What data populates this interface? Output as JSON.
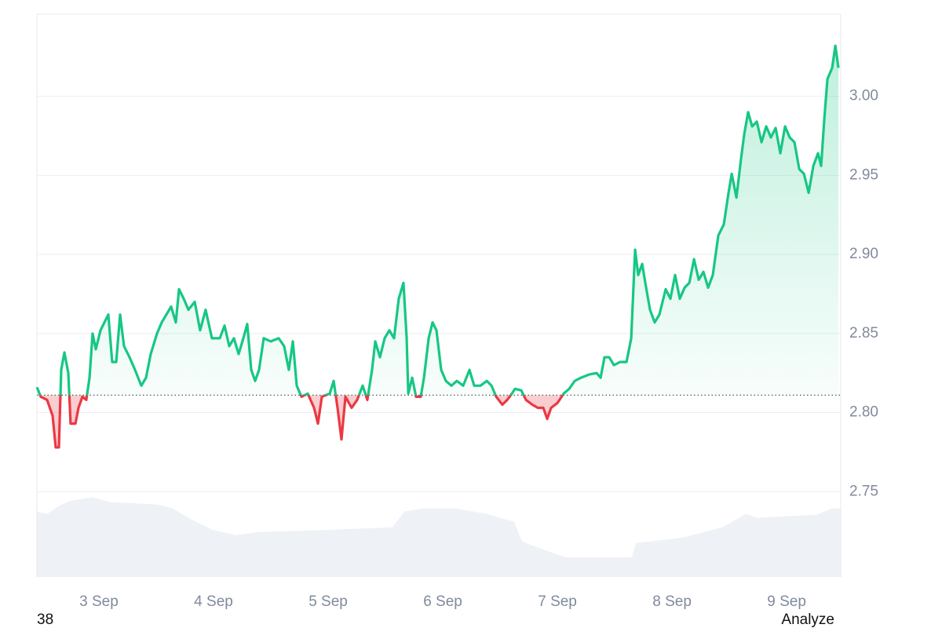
{
  "chart_data": {
    "type": "line",
    "x": [
      2.459,
      2.493,
      2.548,
      2.596,
      2.623,
      2.651,
      2.671,
      2.699,
      2.733,
      2.753,
      2.795,
      2.822,
      2.856,
      2.89,
      2.918,
      2.945,
      2.973,
      3.014,
      3.048,
      3.082,
      3.116,
      3.151,
      3.185,
      3.219,
      3.267,
      3.315,
      3.37,
      3.411,
      3.452,
      3.507,
      3.548,
      3.589,
      3.63,
      3.671,
      3.699,
      3.74,
      3.781,
      3.836,
      3.883,
      3.931,
      3.986,
      4.055,
      4.096,
      4.137,
      4.178,
      4.219,
      4.26,
      4.294,
      4.329,
      4.363,
      4.397,
      4.438,
      4.5,
      4.568,
      4.616,
      4.657,
      4.692,
      4.726,
      4.767,
      4.822,
      4.877,
      4.911,
      4.945,
      5.014,
      5.048,
      5.082,
      5.116,
      5.151,
      5.205,
      5.253,
      5.301,
      5.342,
      5.383,
      5.411,
      5.452,
      5.493,
      5.534,
      5.575,
      5.616,
      5.657,
      5.685,
      5.699,
      5.733,
      5.767,
      5.808,
      5.836,
      5.877,
      5.911,
      5.945,
      5.986,
      6.027,
      6.075,
      6.123,
      6.178,
      6.233,
      6.274,
      6.329,
      6.384,
      6.425,
      6.466,
      6.52,
      6.562,
      6.603,
      6.63,
      6.685,
      6.726,
      6.781,
      6.829,
      6.877,
      6.911,
      6.945,
      7.0,
      7.055,
      7.103,
      7.151,
      7.205,
      7.274,
      7.342,
      7.377,
      7.411,
      7.452,
      7.493,
      7.548,
      7.603,
      7.644,
      7.678,
      7.705,
      7.74,
      7.767,
      7.808,
      7.849,
      7.89,
      7.945,
      7.986,
      8.027,
      8.068,
      8.11,
      8.151,
      8.192,
      8.233,
      8.274,
      8.315,
      8.356,
      8.404,
      8.452,
      8.493,
      8.521,
      8.562,
      8.603,
      8.63,
      8.664,
      8.699,
      8.74,
      8.781,
      8.822,
      8.863,
      8.904,
      8.945,
      8.986,
      9.027,
      9.068,
      9.11,
      9.151,
      9.192,
      9.233,
      9.274,
      9.301,
      9.329,
      9.356,
      9.397,
      9.425,
      9.452
    ],
    "series": [
      {
        "color": "#16c784",
        "values": [
          2.816,
          2.81,
          2.808,
          2.798,
          2.778,
          2.778,
          2.827,
          2.838,
          2.825,
          2.793,
          2.793,
          2.803,
          2.81,
          2.808,
          2.822,
          2.85,
          2.84,
          2.852,
          2.857,
          2.862,
          2.832,
          2.832,
          2.862,
          2.842,
          2.835,
          2.827,
          2.817,
          2.822,
          2.837,
          2.85,
          2.857,
          2.862,
          2.867,
          2.857,
          2.878,
          2.872,
          2.865,
          2.87,
          2.852,
          2.865,
          2.847,
          2.847,
          2.855,
          2.842,
          2.847,
          2.837,
          2.847,
          2.856,
          2.827,
          2.82,
          2.827,
          2.847,
          2.845,
          2.847,
          2.842,
          2.827,
          2.845,
          2.817,
          2.81,
          2.812,
          2.803,
          2.793,
          2.81,
          2.812,
          2.82,
          2.803,
          2.783,
          2.81,
          2.803,
          2.808,
          2.817,
          2.808,
          2.827,
          2.845,
          2.835,
          2.847,
          2.852,
          2.847,
          2.872,
          2.882,
          2.847,
          2.812,
          2.822,
          2.81,
          2.81,
          2.822,
          2.847,
          2.857,
          2.852,
          2.827,
          2.82,
          2.817,
          2.82,
          2.817,
          2.827,
          2.817,
          2.817,
          2.82,
          2.817,
          2.81,
          2.805,
          2.808,
          2.812,
          2.815,
          2.814,
          2.808,
          2.805,
          2.803,
          2.803,
          2.796,
          2.803,
          2.806,
          2.812,
          2.815,
          2.82,
          2.822,
          2.824,
          2.825,
          2.822,
          2.835,
          2.835,
          2.83,
          2.832,
          2.832,
          2.847,
          2.903,
          2.887,
          2.894,
          2.882,
          2.865,
          2.857,
          2.862,
          2.878,
          2.872,
          2.887,
          2.872,
          2.879,
          2.882,
          2.897,
          2.884,
          2.889,
          2.879,
          2.887,
          2.912,
          2.919,
          2.939,
          2.951,
          2.936,
          2.961,
          2.976,
          2.99,
          2.981,
          2.984,
          2.971,
          2.981,
          2.974,
          2.98,
          2.964,
          2.981,
          2.974,
          2.971,
          2.954,
          2.951,
          2.939,
          2.956,
          2.964,
          2.956,
          2.986,
          3.011,
          3.018,
          3.032,
          3.018
        ]
      }
    ],
    "baseline": 2.811,
    "negative_color": "#ea3943",
    "volume": {
      "color": "#eef1f5",
      "axis": "y2",
      "x": [
        2.459,
        2.548,
        2.651,
        2.753,
        2.945,
        3.096,
        3.507,
        3.644,
        3.781,
        3.986,
        4.192,
        4.397,
        4.877,
        5.562,
        5.664,
        5.836,
        6.11,
        6.384,
        6.623,
        6.692,
        6.931,
        7.068,
        7.65,
        7.685,
        8.096,
        8.438,
        8.644,
        8.746,
        9.26,
        9.397,
        9.472
      ],
      "values": [
        83,
        80,
        90,
        97,
        101,
        95,
        92,
        87,
        75,
        60,
        53,
        57,
        59,
        63,
        83,
        87,
        87,
        80,
        70,
        45,
        32,
        25,
        25,
        43,
        50,
        63,
        80,
        75,
        79,
        87,
        87
      ]
    },
    "y2lim": [
      0,
      100
    ],
    "xlim": [
      2.459,
      9.472
    ],
    "xticks": [
      {
        "value": 3,
        "label": "3 Sep"
      },
      {
        "value": 4,
        "label": "4 Sep"
      },
      {
        "value": 5,
        "label": "5 Sep"
      },
      {
        "value": 6,
        "label": "6 Sep"
      },
      {
        "value": 7,
        "label": "7 Sep"
      },
      {
        "value": 8,
        "label": "8 Sep"
      },
      {
        "value": 9,
        "label": "9 Sep"
      }
    ],
    "ylim": [
      2.696,
      3.052
    ],
    "yticks": [
      2.75,
      {
        "value": 2.8,
        "label": "2.80"
      },
      2.85,
      {
        "value": 2.9,
        "label": "2.90"
      },
      2.95,
      {
        "value": 3,
        "label": "3.00"
      }
    ],
    "grid": true,
    "footer_left": "38",
    "footer_right": "Analyze"
  }
}
